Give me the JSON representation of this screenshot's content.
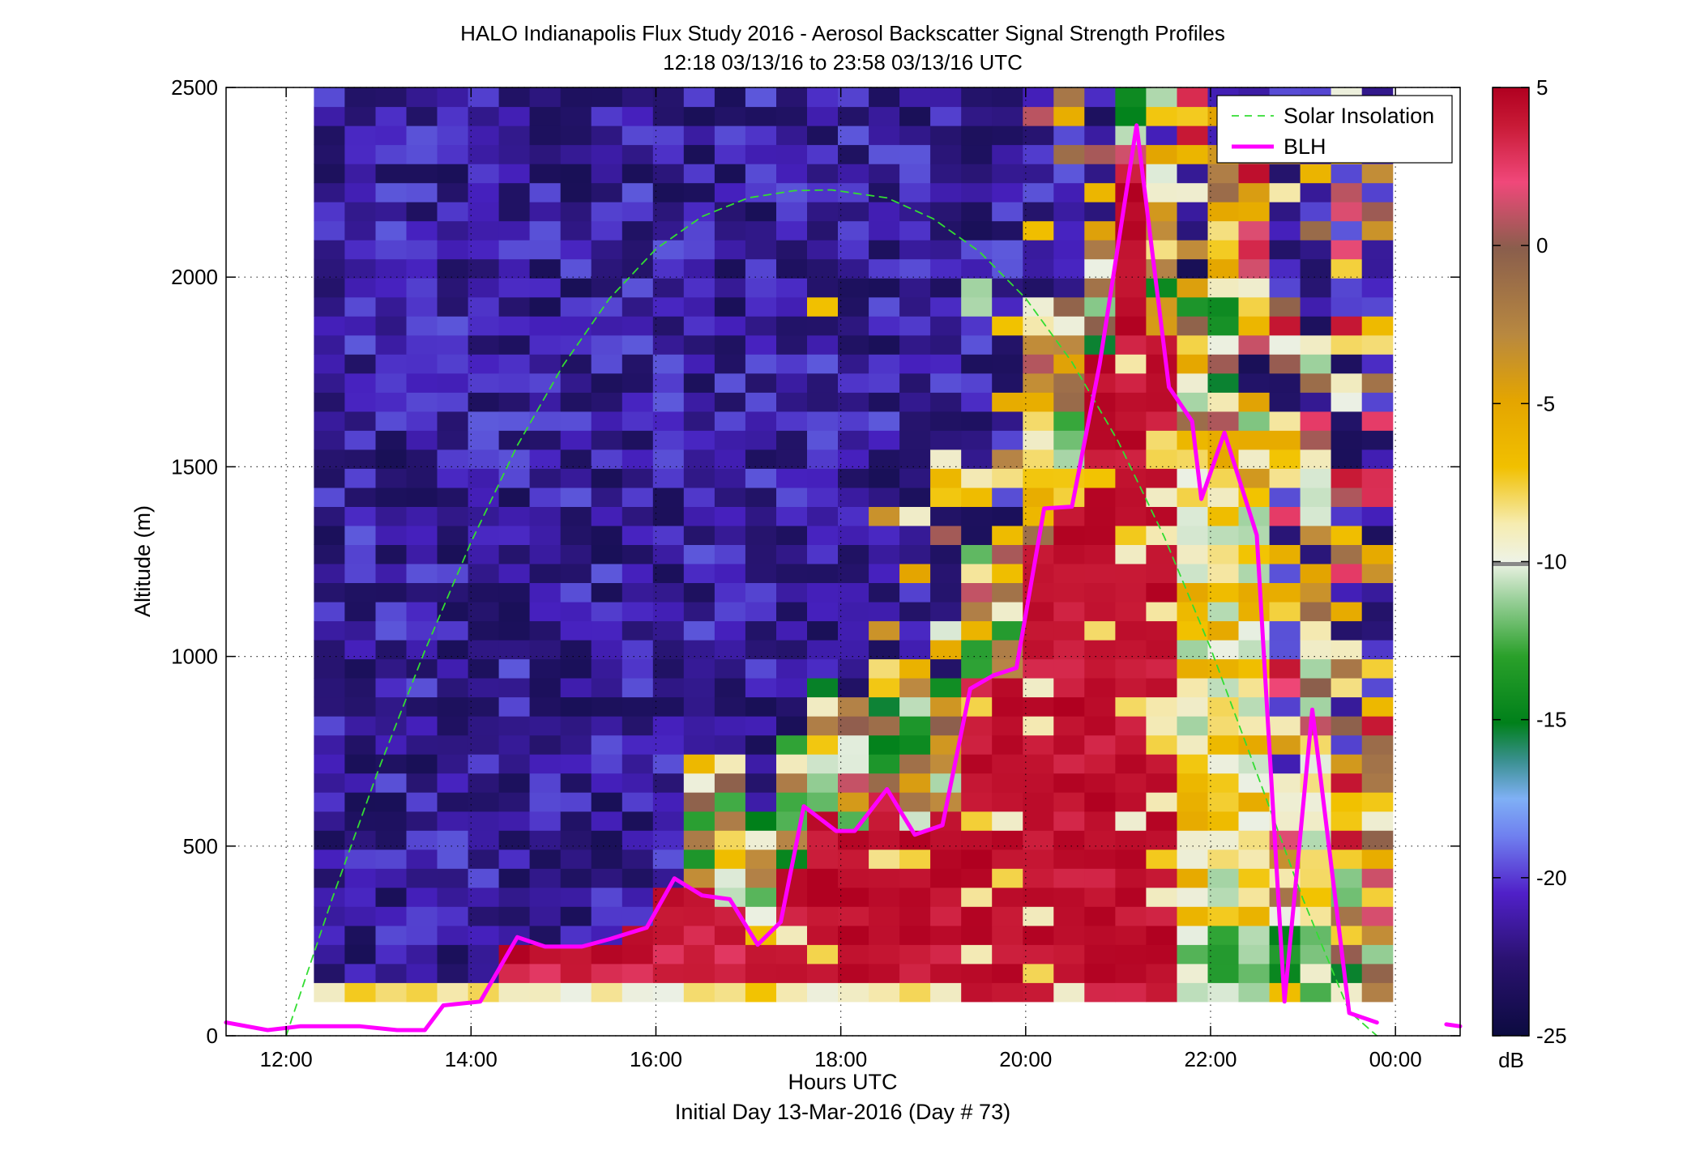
{
  "chart_data": {
    "type": "heatmap",
    "title": "HALO Indianapolis Flux Study 2016 - Aerosol Backscatter Signal Strength Profiles",
    "subtitle": "12:18 03/13/16 to 23:58 03/13/16  UTC",
    "xlabel": "Hours UTC",
    "xlabel2": "Initial Day 13-Mar-2016 (Day # 73)",
    "ylabel": "Altitude (m)",
    "xlim": [
      11.35,
      24.7
    ],
    "ylim": [
      0,
      2500
    ],
    "grid": true,
    "x_ticks": [
      {
        "value": 12,
        "label": "12:00"
      },
      {
        "value": 14,
        "label": "14:00"
      },
      {
        "value": 16,
        "label": "16:00"
      },
      {
        "value": 18,
        "label": "18:00"
      },
      {
        "value": 20,
        "label": "20:00"
      },
      {
        "value": 22,
        "label": "22:00"
      },
      {
        "value": 24,
        "label": "00:00"
      }
    ],
    "y_ticks": [
      {
        "value": 0,
        "label": "0"
      },
      {
        "value": 500,
        "label": "500"
      },
      {
        "value": 1000,
        "label": "1000"
      },
      {
        "value": 1500,
        "label": "1500"
      },
      {
        "value": 2000,
        "label": "2000"
      },
      {
        "value": 2500,
        "label": "2500"
      }
    ],
    "colorbar": {
      "label": "dB",
      "range": [
        -25,
        5
      ],
      "ticks": [
        {
          "value": 5,
          "label": "5"
        },
        {
          "value": 0,
          "label": "0"
        },
        {
          "value": -5,
          "label": "-5"
        },
        {
          "value": -10,
          "label": "-10"
        },
        {
          "value": -15,
          "label": "-15"
        },
        {
          "value": -20,
          "label": "-20"
        },
        {
          "value": -25,
          "label": "-25"
        }
      ]
    },
    "heatmap": {
      "time_range_hours": [
        12.3,
        23.97
      ],
      "altitude_range_m": [
        90,
        2500
      ],
      "columns": 35,
      "rows": 48
    },
    "legend": {
      "placement": "top-right",
      "entries": [
        {
          "label": "Solar Insolation",
          "color": "#33dd33",
          "style": "dashed"
        },
        {
          "label": "BLH",
          "color": "#ff00ff",
          "style": "solid"
        }
      ]
    },
    "series": [
      {
        "name": "Solar Insolation",
        "color": "#33dd33",
        "x": [
          12.0,
          12.5,
          13.0,
          13.5,
          14.0,
          14.5,
          15.0,
          15.5,
          16.0,
          16.5,
          17.0,
          17.5,
          17.9,
          18.5,
          19.0,
          19.5,
          20.0,
          20.5,
          21.0,
          21.5,
          22.0,
          22.5,
          23.0,
          23.5,
          23.8
        ],
        "y": [
          0,
          363,
          702,
          1015,
          1301,
          1556,
          1769,
          1944,
          2074,
          2160,
          2209,
          2228,
          2230,
          2209,
          2154,
          2067,
          1944,
          1776,
          1567,
          1315,
          1022,
          693,
          360,
          64,
          0
        ]
      },
      {
        "name": "BLH",
        "color": "#ff00ff",
        "x": [
          11.35,
          11.8,
          12.15,
          12.8,
          13.2,
          13.5,
          13.7,
          14.1,
          14.5,
          14.8,
          15.2,
          15.5,
          15.9,
          16.2,
          16.5,
          16.8,
          17.1,
          17.35,
          17.6,
          17.95,
          18.15,
          18.5,
          18.8,
          19.1,
          19.4,
          19.65,
          19.9,
          20.2,
          20.5,
          20.8,
          21.2,
          21.55,
          21.8,
          21.9,
          22.15,
          22.5,
          22.8,
          23.1,
          23.5,
          23.8,
          24.07,
          24.2,
          24.55,
          24.7
        ],
        "y": [
          35,
          15,
          25,
          25,
          15,
          15,
          80,
          90,
          260,
          235,
          235,
          255,
          285,
          415,
          370,
          360,
          240,
          300,
          605,
          540,
          540,
          650,
          530,
          555,
          915,
          950,
          970,
          1390,
          1395,
          1770,
          2400,
          1710,
          1620,
          1415,
          1590,
          1320,
          90,
          860,
          60,
          35,
          null,
          null,
          30,
          25
        ]
      }
    ]
  }
}
